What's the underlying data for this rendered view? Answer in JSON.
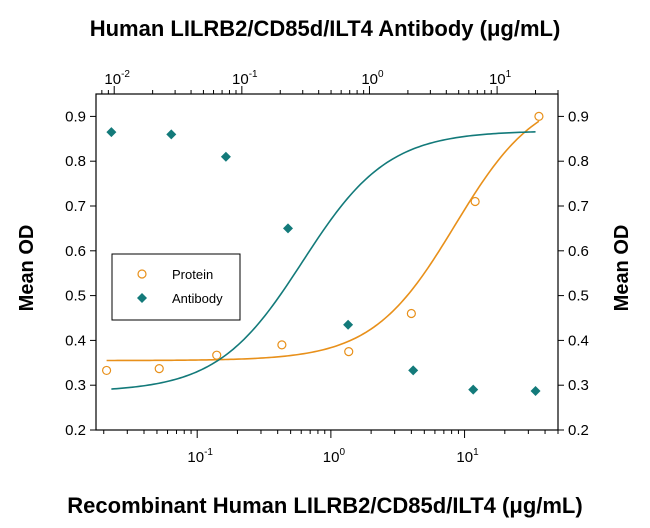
{
  "chart_data": {
    "type": "scatter",
    "title": "Human LILRB2/CD85d/ILT4 Antibody (μg/mL)",
    "xlabel": "Recombinant Human LILRB2/CD85d/ILT4 (μg/mL)",
    "ylabel": "Mean OD",
    "ylabel_right": "Mean OD",
    "x_scale": "log",
    "xlim": [
      0.0175,
      50
    ],
    "x_top_scale": "log",
    "x_top_lim": [
      0.0072,
      30
    ],
    "ylim": [
      0.2,
      0.95
    ],
    "y_ticks": [
      0.2,
      0.3,
      0.4,
      0.5,
      0.6,
      0.7,
      0.8,
      0.9
    ],
    "y_tick_labels": [
      "0.2",
      "0.3",
      "0.4",
      "0.5",
      "0.6",
      "0.7",
      "0.8",
      "0.9"
    ],
    "x_bottom_ticks": [
      {
        "base": "10",
        "exp": "-1",
        "value": 0.1
      },
      {
        "base": "10",
        "exp": "0",
        "value": 1
      },
      {
        "base": "10",
        "exp": "1",
        "value": 10
      }
    ],
    "x_top_ticks": [
      {
        "base": "10",
        "exp": "-2",
        "value": 0.01
      },
      {
        "base": "10",
        "exp": "-1",
        "value": 0.1
      },
      {
        "base": "10",
        "exp": "0",
        "value": 1
      },
      {
        "base": "10",
        "exp": "1",
        "value": 10
      }
    ],
    "legend_position": "left",
    "grid": false,
    "series": [
      {
        "name": "Protein",
        "axis": "bottom",
        "marker": "open-circle",
        "color": "#E8901A",
        "x": [
          0.021,
          0.052,
          0.14,
          0.43,
          1.36,
          4.0,
          12.0,
          36.0
        ],
        "y": [
          0.333,
          0.337,
          0.367,
          0.39,
          0.375,
          0.46,
          0.71,
          0.9
        ],
        "fit": {
          "bottom": 0.355,
          "top": 0.96,
          "ec50": 8.5,
          "hill": 1.4
        }
      },
      {
        "name": "Antibody",
        "axis": "top",
        "marker": "filled-diamond",
        "color": "#137A7A",
        "x": [
          0.0095,
          0.028,
          0.075,
          0.23,
          0.68,
          2.2,
          6.5,
          20.0
        ],
        "y": [
          0.865,
          0.86,
          0.81,
          0.65,
          0.435,
          0.333,
          0.29,
          0.287
        ],
        "fit": {
          "bottom": 0.285,
          "top": 0.868,
          "ec50": 0.3,
          "hill": 1.3
        }
      }
    ]
  }
}
